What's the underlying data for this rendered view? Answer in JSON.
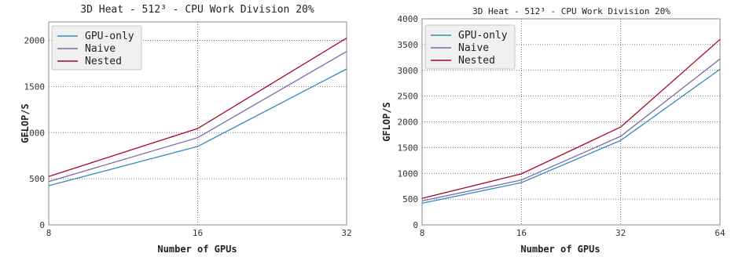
{
  "chart_data": [
    {
      "type": "line",
      "title": "3D Heat - 512³ - CPU Work Division 20%",
      "xlabel": "Number of GPUs",
      "ylabel": "GFLOP/S",
      "x_scale": "log2",
      "categories": [
        "8",
        "16",
        "32"
      ],
      "x": [
        8,
        16,
        32
      ],
      "ylim": [
        0,
        2200
      ],
      "yticks": [
        "0",
        "500",
        "1000",
        "1500",
        "2000"
      ],
      "grid": true,
      "legend_position": "top-left",
      "series": [
        {
          "name": "GPU-only",
          "color": "#348ABD",
          "values": [
            425,
            850,
            1690
          ]
        },
        {
          "name": "Naive",
          "color": "#7A68A6",
          "values": [
            470,
            945,
            1880
          ]
        },
        {
          "name": "Nested",
          "color": "#A60628",
          "values": [
            525,
            1045,
            2025
          ]
        }
      ]
    },
    {
      "type": "line",
      "title": "3D Heat - 512³ - CPU Work Division 20%",
      "xlabel": "Number of GPUs",
      "ylabel": "GFLOP/S",
      "x_scale": "log2",
      "categories": [
        "8",
        "16",
        "32",
        "64"
      ],
      "x": [
        8,
        16,
        32,
        64
      ],
      "ylim": [
        0,
        4000
      ],
      "yticks": [
        "0",
        "500",
        "1000",
        "1500",
        "2000",
        "2500",
        "3000",
        "3500",
        "4000"
      ],
      "grid": true,
      "legend_position": "top-left",
      "series": [
        {
          "name": "GPU-only",
          "color": "#348ABD",
          "values": [
            420,
            820,
            1640,
            3020
          ]
        },
        {
          "name": "Naive",
          "color": "#7A68A6",
          "values": [
            465,
            870,
            1720,
            3220
          ]
        },
        {
          "name": "Nested",
          "color": "#A60628",
          "values": [
            515,
            990,
            1900,
            3600
          ]
        }
      ]
    }
  ]
}
